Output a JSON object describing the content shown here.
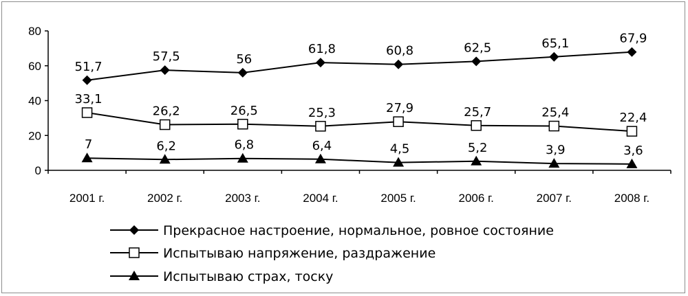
{
  "chart_data": {
    "type": "line",
    "categories": [
      "2001 г.",
      "2002 г.",
      "2003 г.",
      "2004 г.",
      "2005 г.",
      "2006 г.",
      "2007 г.",
      "2008 г."
    ],
    "ylim": [
      0,
      80
    ],
    "yticks": [
      "0",
      "20",
      "40",
      "60",
      "80"
    ],
    "grid": false,
    "legend_position": "bottom",
    "series": [
      {
        "name": "Прекрасное настроение, нормальное, ровное состояние",
        "marker": "diamond-filled",
        "values": [
          51.7,
          57.5,
          56,
          61.8,
          60.8,
          62.5,
          65.1,
          67.9
        ],
        "labels": [
          "51,7",
          "57,5",
          "56",
          "61,8",
          "60,8",
          "62,5",
          "65,1",
          "67,9"
        ]
      },
      {
        "name": "Испытываю напряжение, раздражение",
        "marker": "square-open",
        "values": [
          33.1,
          26.2,
          26.5,
          25.3,
          27.9,
          25.7,
          25.4,
          22.4
        ],
        "labels": [
          "33,1",
          "26,2",
          "26,5",
          "25,3",
          "27,9",
          "25,7",
          "25,4",
          "22,4"
        ]
      },
      {
        "name": "Испытываю страх, тоску",
        "marker": "triangle-filled",
        "values": [
          7,
          6.2,
          6.8,
          6.4,
          4.5,
          5.2,
          3.9,
          3.6
        ],
        "labels": [
          "7",
          "6,2",
          "6,8",
          "6,4",
          "4,5",
          "5,2",
          "3,9",
          "3,6"
        ]
      }
    ],
    "colors": {
      "line": "#000000",
      "background": "#ffffff",
      "border": "#8c8c8c"
    }
  }
}
